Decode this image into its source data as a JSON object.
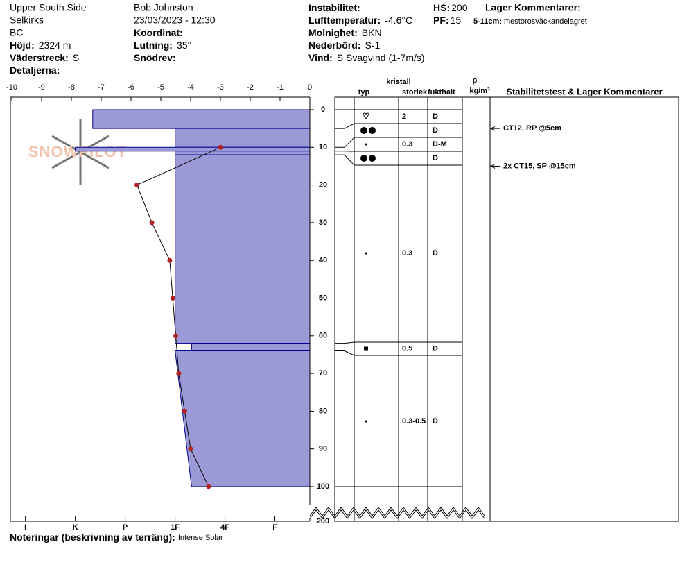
{
  "site": [
    "Upper South Side",
    "Selkirks",
    "BC"
  ],
  "observer": "Bob Johnston",
  "datetime": "23/03/2023 - 12:30",
  "fields": [
    {
      "label": "Höjd:",
      "value": "2324 m"
    },
    {
      "label": "Väderstreck:",
      "value": "S"
    },
    {
      "label": "Detaljerna:"
    },
    {
      "label": "Koordinat:"
    },
    {
      "label": "Lutning:",
      "value": "35°"
    },
    {
      "label": "Snödrev:"
    },
    {
      "label": "Instabilitet:"
    },
    {
      "label": "Lufttemperatur:",
      "value": "-4.6°C"
    },
    {
      "label": "Molnighet:",
      "value": "BKN"
    },
    {
      "label": "Nederbörd:",
      "value": "S-1"
    },
    {
      "label": "Vind:",
      "value": "S Svagvind (1-7m/s)"
    },
    {
      "label": "HS:",
      "value": "200"
    },
    {
      "label": "PF:",
      "value": "15"
    }
  ],
  "layer_comments": {
    "title": "Lager Kommentarer:",
    "label": "5-11cm:",
    "value": "mestorosväckandelagret"
  },
  "logo": "SNOWPILOT",
  "chart_data": {
    "type": "snow_profile",
    "xlim": [
      -10,
      0
    ],
    "xticks": [
      -10,
      -9,
      -8,
      -7,
      -6,
      -5,
      -4,
      -3,
      -2,
      -1,
      0
    ],
    "ylim": [
      0,
      100
    ],
    "yticks": [
      0,
      10,
      20,
      30,
      40,
      50,
      60,
      70,
      80,
      90,
      100
    ],
    "bottom_tick": 200,
    "hardness_categories": [
      "I",
      "K",
      "P",
      "1F",
      "4F",
      "F"
    ],
    "hardness_lim": [
      6.3,
      0.3
    ],
    "layer_color": "#9b9ad6",
    "layers": [
      {
        "top": 0,
        "bottom": 5,
        "hardness": 4.65
      },
      {
        "top": 5,
        "bottom": 10,
        "hardness": 3
      },
      {
        "top": 10,
        "bottom": 11,
        "hardness": 5
      },
      {
        "top": 11,
        "bottom": 12,
        "hardness": 3
      },
      {
        "top": 12,
        "bottom": 62,
        "hardness": 3
      },
      {
        "top": 62,
        "bottom": 64,
        "hardness": 2.67
      },
      {
        "top": 64,
        "bottom": 100,
        "hardness": 3,
        "hardness_bottom": 2.67
      }
    ],
    "temperature": {
      "color": "#b22222",
      "depths": [
        10,
        20,
        30,
        40,
        50,
        60,
        70,
        80,
        90,
        100
      ],
      "values": [
        -3.0,
        -5.8,
        -5.3,
        -4.7,
        -4.6,
        -4.5,
        -4.4,
        -4.2,
        -4.0,
        -3.4
      ]
    }
  },
  "table": {
    "headers": [
      "kristall",
      "typ",
      "storlek",
      "fukthalt",
      "ρ",
      "kg/m³",
      "Stabilitetstest & Lager Kommentarer"
    ],
    "rows": [
      {
        "size": "2",
        "moisture": "D"
      },
      {
        "moisture": "D"
      },
      {
        "size": "0.3",
        "moisture": "D-M"
      },
      {
        "moisture": "D"
      },
      {
        "size": "0.3",
        "moisture": "D"
      },
      {
        "size": "0.5",
        "moisture": "D"
      },
      {
        "size": "0.3-0.5",
        "moisture": "D"
      }
    ],
    "tests": [
      {
        "text": "CT12, RP @5cm",
        "depth": 5
      },
      {
        "text": "2x CT15, SP @15cm",
        "depth": 15
      }
    ]
  },
  "notes": {
    "label": "Noteringar (beskrivning av terräng):",
    "value": "Intense Solar"
  }
}
